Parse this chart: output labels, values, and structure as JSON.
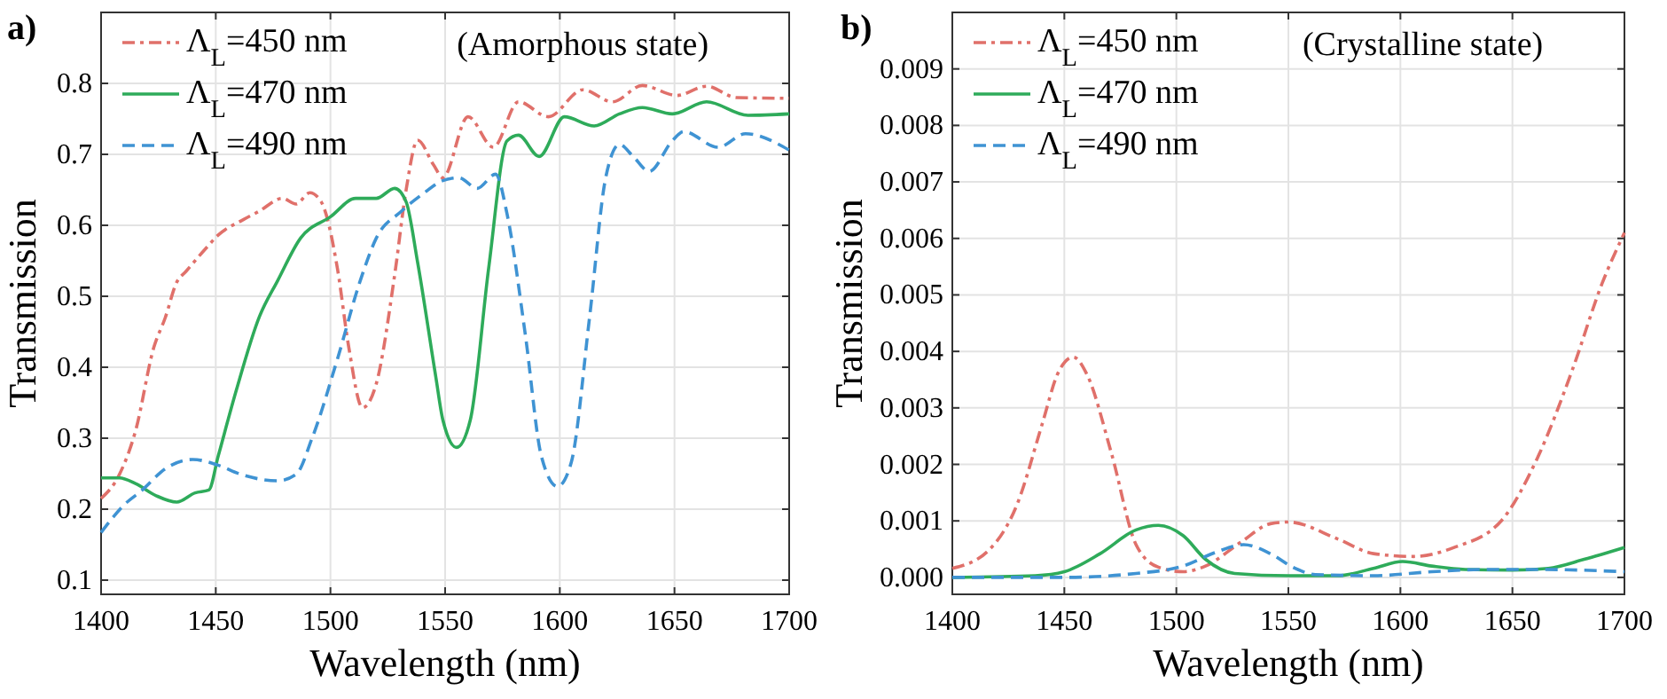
{
  "chart_data": [
    {
      "type": "line",
      "title": "a)",
      "xlabel": "Wavelength (nm)",
      "ylabel": "Transmission",
      "annotations": [
        "(Amorphous state)"
      ],
      "xlim": [
        1400,
        1700
      ],
      "xticks": [
        1400,
        1450,
        1500,
        1550,
        1600,
        1650,
        1700
      ],
      "ylim": [
        0.08,
        0.9
      ],
      "yticks": [
        0.1,
        0.2,
        0.3,
        0.4,
        0.5,
        0.6,
        0.7,
        0.8
      ],
      "grid": true,
      "legend": "top left",
      "marker": "none",
      "series": [
        {
          "name": "Λ$_{L}$=450 nm",
          "color": "#e0706a",
          "line_style": "dashdot",
          "x": [
            1400,
            1408,
            1415,
            1423,
            1428,
            1433,
            1437,
            1445,
            1451,
            1462,
            1469,
            1479,
            1485,
            1491,
            1496,
            1503,
            1508,
            1514,
            1520,
            1528,
            1533,
            1538,
            1545,
            1549,
            1560,
            1571,
            1582,
            1595,
            1610,
            1623,
            1636,
            1651,
            1664,
            1677,
            1700
          ],
          "values": [
            0.215,
            0.249,
            0.31,
            0.428,
            0.47,
            0.52,
            0.535,
            0.565,
            0.586,
            0.608,
            0.62,
            0.638,
            0.63,
            0.646,
            0.633,
            0.54,
            0.428,
            0.343,
            0.377,
            0.53,
            0.65,
            0.72,
            0.685,
            0.667,
            0.753,
            0.71,
            0.774,
            0.753,
            0.791,
            0.774,
            0.797,
            0.783,
            0.796,
            0.78,
            0.779
          ]
        },
        {
          "name": "Λ$_{L}$=470 nm",
          "color": "#2eab5a",
          "line_style": "solid",
          "x": [
            1400,
            1408,
            1415,
            1424,
            1433,
            1441,
            1447,
            1451,
            1459,
            1469,
            1477,
            1487,
            1500,
            1511,
            1520,
            1528,
            1533,
            1538,
            1546,
            1549,
            1555,
            1561,
            1569,
            1577,
            1582,
            1591,
            1602,
            1615,
            1626,
            1636,
            1649,
            1664,
            1682,
            1700
          ],
          "values": [
            0.244,
            0.244,
            0.236,
            0.219,
            0.21,
            0.223,
            0.227,
            0.274,
            0.368,
            0.471,
            0.522,
            0.582,
            0.612,
            0.638,
            0.638,
            0.652,
            0.633,
            0.548,
            0.385,
            0.326,
            0.287,
            0.326,
            0.54,
            0.719,
            0.727,
            0.697,
            0.753,
            0.74,
            0.757,
            0.766,
            0.757,
            0.774,
            0.755,
            0.757
          ]
        },
        {
          "name": "Λ$_{L}$=490 nm",
          "color": "#3f93d3",
          "line_style": "dashed",
          "x": [
            1400,
            1410,
            1418,
            1428,
            1440,
            1451,
            1461,
            1477,
            1485,
            1492,
            1503,
            1513,
            1520,
            1531,
            1541,
            1549,
            1556,
            1564,
            1572,
            1577,
            1585,
            1592,
            1599,
            1605,
            1613,
            1620,
            1626,
            1632,
            1639,
            1649,
            1654,
            1669,
            1681,
            1700
          ],
          "values": [
            0.167,
            0.206,
            0.227,
            0.257,
            0.27,
            0.262,
            0.249,
            0.24,
            0.249,
            0.3,
            0.411,
            0.522,
            0.582,
            0.62,
            0.646,
            0.663,
            0.667,
            0.652,
            0.672,
            0.616,
            0.445,
            0.274,
            0.232,
            0.266,
            0.471,
            0.667,
            0.714,
            0.697,
            0.676,
            0.719,
            0.732,
            0.71,
            0.729,
            0.706
          ]
        }
      ]
    },
    {
      "type": "line",
      "title": "b)",
      "xlabel": "Wavelength (nm)",
      "ylabel": "Transmission",
      "annotations": [
        "(Crystalline state)"
      ],
      "xlim": [
        1400,
        1700
      ],
      "xticks": [
        1400,
        1450,
        1500,
        1550,
        1600,
        1650,
        1700
      ],
      "ylim": [
        -0.0003,
        0.01
      ],
      "yticks": [
        {
          "value": 0,
          "label": "0.000"
        },
        {
          "value": 0.001,
          "label": "0.001"
        },
        {
          "value": 0.002,
          "label": "0.002"
        },
        {
          "value": 0.003,
          "label": "0.003"
        },
        {
          "value": 0.004,
          "label": "0.004"
        },
        {
          "value": 0.005,
          "label": "0.005"
        },
        {
          "value": 0.006,
          "label": "0.006"
        },
        {
          "value": 0.007,
          "label": "0.007"
        },
        {
          "value": 0.008,
          "label": "0.008"
        },
        {
          "value": 0.009,
          "label": "0.009"
        }
      ],
      "grid": true,
      "legend": "top left",
      "marker": "none",
      "series": [
        {
          "name": "Λ$_{L}$=450 nm",
          "color": "#e0706a",
          "line_style": "dashdot",
          "x": [
            1400,
            1416,
            1429,
            1440,
            1447,
            1454,
            1460,
            1471,
            1482,
            1492,
            1503,
            1513,
            1529,
            1542,
            1550,
            1572,
            1588,
            1606,
            1624,
            1645,
            1661,
            1677,
            1690,
            1700
          ],
          "values": [
            0.00016,
            0.00047,
            0.0013,
            0.0027,
            0.0036,
            0.0039,
            0.0036,
            0.0022,
            0.00058,
            0.00018,
            0.0001,
            0.0002,
            0.00063,
            0.00095,
            0.00098,
            0.00068,
            0.00042,
            0.00037,
            0.00053,
            0.001,
            0.0021,
            0.0037,
            0.0052,
            0.0061
          ]
        },
        {
          "name": "Λ$_{L}$=470 nm",
          "color": "#2eab5a",
          "line_style": "solid",
          "x": [
            1400,
            1437,
            1450,
            1466,
            1482,
            1492,
            1503,
            1513,
            1526,
            1550,
            1572,
            1588,
            1601,
            1614,
            1629,
            1650,
            1666,
            1682,
            1700
          ],
          "values": [
            0,
            3e-05,
            0.0001,
            0.00042,
            0.00084,
            0.00092,
            0.00074,
            0.00032,
            7e-05,
            3e-05,
            3e-05,
            0.00016,
            0.00028,
            0.0002,
            0.00014,
            0.00013,
            0.00016,
            0.00032,
            0.00053
          ]
        },
        {
          "name": "Λ$_{L}$=490 nm",
          "color": "#3f93d3",
          "line_style": "dashed",
          "x": [
            1400,
            1450,
            1482,
            1503,
            1518,
            1530,
            1542,
            1553,
            1562,
            1588,
            1614,
            1637,
            1663,
            1700
          ],
          "values": [
            0,
            0,
            7e-05,
            0.0002,
            0.00045,
            0.00058,
            0.00042,
            0.00016,
            5e-05,
            3e-05,
            0.0001,
            0.00014,
            0.00014,
            0.0001
          ]
        }
      ]
    }
  ]
}
